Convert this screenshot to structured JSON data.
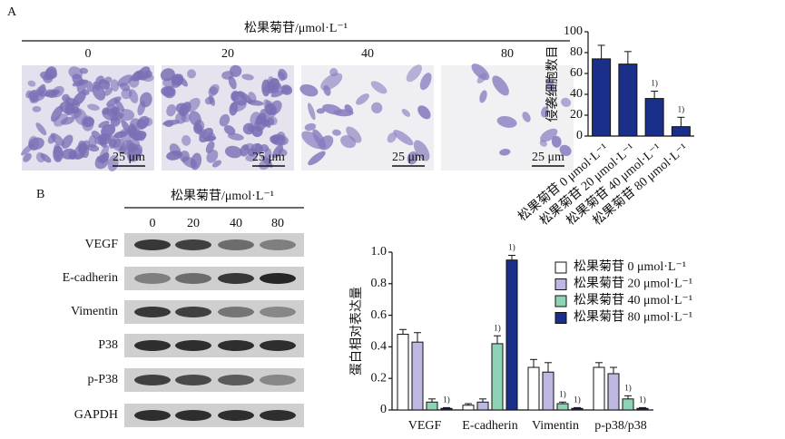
{
  "panel_a": {
    "label": "A",
    "header": "松果菊苷/μmol·L⁻¹",
    "concentrations": [
      "0",
      "20",
      "40",
      "80"
    ],
    "scale_bar": "25 μm"
  },
  "panel_b": {
    "label": "B",
    "header": "松果菊苷/μmol·L⁻¹",
    "concentrations": [
      "0",
      "20",
      "40",
      "80"
    ],
    "proteins": [
      "VEGF",
      "E-cadherin",
      "Vimentin",
      "P38",
      "p-P38",
      "GAPDH"
    ]
  },
  "chart_data": [
    {
      "type": "bar",
      "y_label": "侵袭细胞数目",
      "categories": [
        "松果菊苷 0 μmol·L⁻¹",
        "松果菊苷 20 μmol·L⁻¹",
        "松果菊苷 40 μmol·L⁻¹",
        "松果菊苷 80 μmol·L⁻¹"
      ],
      "values": [
        74,
        69,
        36,
        9
      ],
      "errors": [
        13,
        12,
        7,
        9
      ],
      "significance": [
        null,
        null,
        "1)",
        "1)"
      ],
      "color": "#1a2f8a",
      "ylim": [
        0,
        100
      ],
      "yticks": [
        0,
        20,
        40,
        60,
        80,
        100
      ]
    },
    {
      "type": "bar",
      "y_label": "蛋白相对表达量",
      "categories": [
        "VEGF",
        "E-cadherin",
        "Vimentin",
        "p-p38/p38"
      ],
      "series": [
        {
          "name": "松果菊苷 0 μmol·L⁻¹",
          "color": "#ffffff",
          "values": [
            0.48,
            0.03,
            0.27,
            0.27
          ],
          "errors": [
            0.03,
            0.01,
            0.05,
            0.03
          ],
          "significance": [
            null,
            null,
            null,
            null
          ]
        },
        {
          "name": "松果菊苷 20 μmol·L⁻¹",
          "color": "#bcb8e0",
          "values": [
            0.43,
            0.05,
            0.24,
            0.23
          ],
          "errors": [
            0.06,
            0.02,
            0.06,
            0.04
          ],
          "significance": [
            null,
            null,
            null,
            null
          ]
        },
        {
          "name": "松果菊苷 40 μmol·L⁻¹",
          "color": "#8fd3b6",
          "values": [
            0.05,
            0.42,
            0.04,
            0.07
          ],
          "errors": [
            0.02,
            0.05,
            0.01,
            0.02
          ],
          "significance": [
            null,
            "1)",
            "1)",
            "1)"
          ]
        },
        {
          "name": "松果菊苷 80 μmol·L⁻¹",
          "color": "#1a2f8a",
          "values": [
            0.01,
            0.95,
            0.01,
            0.01
          ],
          "errors": [
            0.005,
            0.03,
            0.005,
            0.005
          ],
          "significance": [
            "1)",
            "1)",
            "1)",
            "1)"
          ]
        }
      ],
      "ylim": [
        0,
        1
      ],
      "yticks": [
        0,
        0.2,
        0.4,
        0.6,
        0.8,
        {
          "value": 1,
          "label": "1.0"
        }
      ],
      "legend": "upper right"
    }
  ]
}
